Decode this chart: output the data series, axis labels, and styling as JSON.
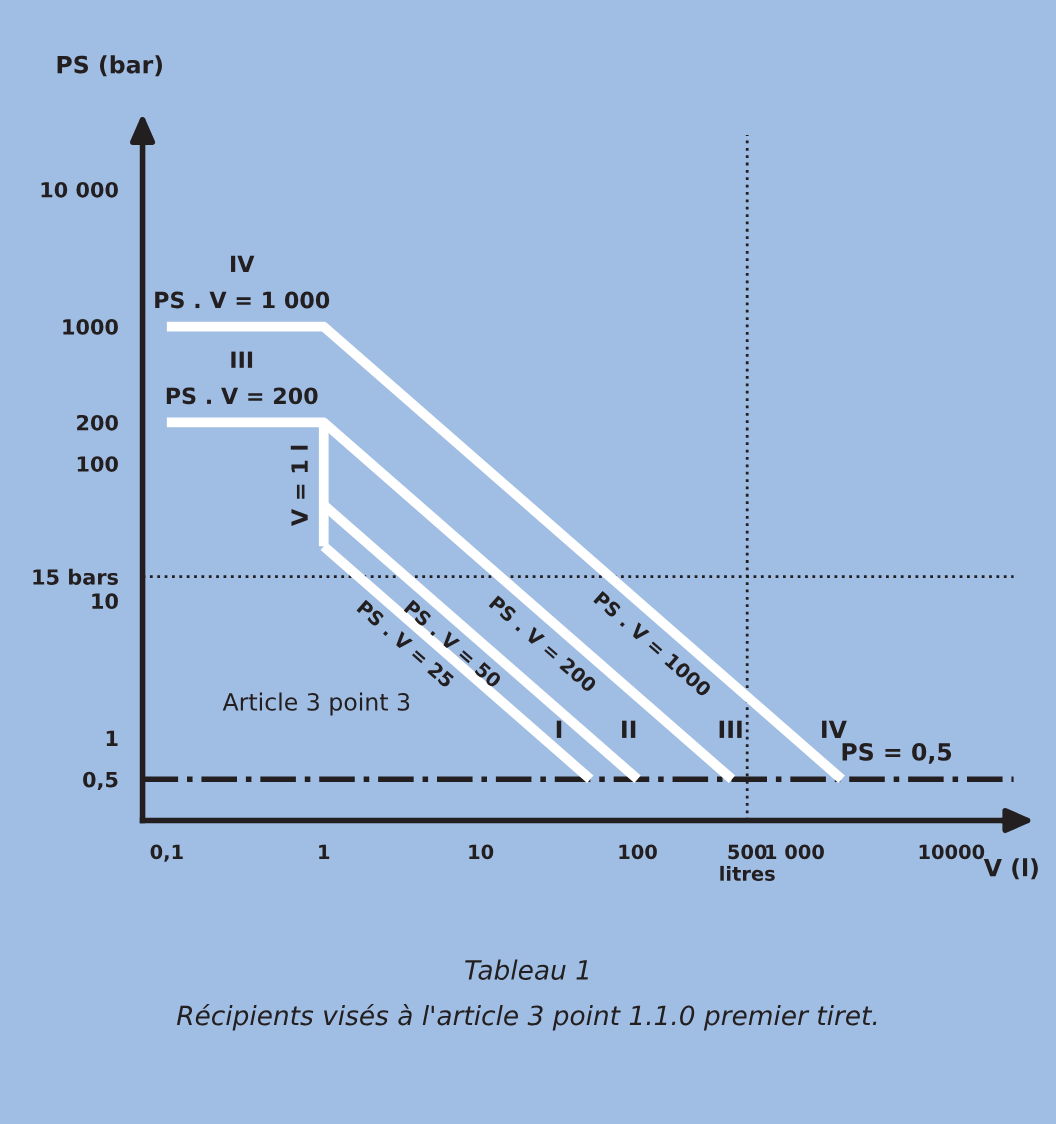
{
  "chart_data": {
    "type": "line",
    "log": "xy",
    "grid": false,
    "marker": "none",
    "line_style": "solid",
    "xlabel": "V (l)",
    "ylabel": "PS (bar)",
    "xlim": [
      0.07,
      25000
    ],
    "ylim": [
      0.25,
      25000
    ],
    "xticks": [
      {
        "value": 0.1,
        "label": "0,1"
      },
      1,
      10,
      100,
      {
        "value": 500,
        "label": "500\nlitres"
      },
      {
        "value": 1000,
        "label": "1 000"
      },
      {
        "value": 10000,
        "label": "10000"
      }
    ],
    "yticks": [
      {
        "value": 0.5,
        "label": "0,5"
      },
      1,
      10,
      {
        "value": 15,
        "label": "15 bars"
      },
      100,
      200,
      1000,
      {
        "value": 10000,
        "label": "10 000"
      }
    ],
    "series": [
      {
        "color": "#ffffff",
        "x": [
          0.1,
          1,
          2000
        ],
        "values": [
          1000,
          1000,
          0.5
        ]
      },
      {
        "color": "#ffffff",
        "x": [
          0.1,
          1,
          400
        ],
        "values": [
          200,
          200,
          0.5
        ]
      },
      {
        "color": "#ffffff",
        "x": [
          1,
          1
        ],
        "values": [
          200,
          25
        ]
      },
      {
        "color": "#ffffff",
        "x": [
          1,
          100
        ],
        "values": [
          50,
          0.5
        ]
      },
      {
        "color": "#ffffff",
        "x": [
          1,
          50
        ],
        "values": [
          25,
          0.5
        ]
      }
    ],
    "ref_lines": [
      {
        "axis": "y",
        "value": 0.5,
        "label": "PS = 0,5",
        "color": "#231f20",
        "line_style": "dashdot"
      },
      {
        "axis": "y",
        "value": 15,
        "color": "#231f20",
        "line_style": "dotted"
      },
      {
        "axis": "x",
        "value": 500,
        "color": "#231f20",
        "line_style": "dotted"
      }
    ],
    "annotations": [
      {
        "text": "IV",
        "x": 0.3,
        "y": 1000
      },
      {
        "text": "PS . V = 1 000",
        "x": 0.3,
        "y": 1000
      },
      {
        "text": "III",
        "x": 0.3,
        "y": 200
      },
      {
        "text": "PS . V = 200",
        "x": 0.3,
        "y": 200
      },
      {
        "text": "V = 1 l",
        "x": 1,
        "y": 70
      },
      {
        "text": "PS . V = 25",
        "x": 4,
        "y": 6
      },
      {
        "text": "PS . V = 50",
        "x": 8,
        "y": 6
      },
      {
        "text": "PS . V = 200",
        "x": 30,
        "y": 6
      },
      {
        "text": "PS . V = 1000",
        "x": 150,
        "y": 6
      },
      "I",
      "II",
      "III",
      "IV",
      "Article 3 point 3",
      "Tableau 1",
      "Récipients visés à l'article 3 point 1.1.0 premier tiret."
    ]
  }
}
